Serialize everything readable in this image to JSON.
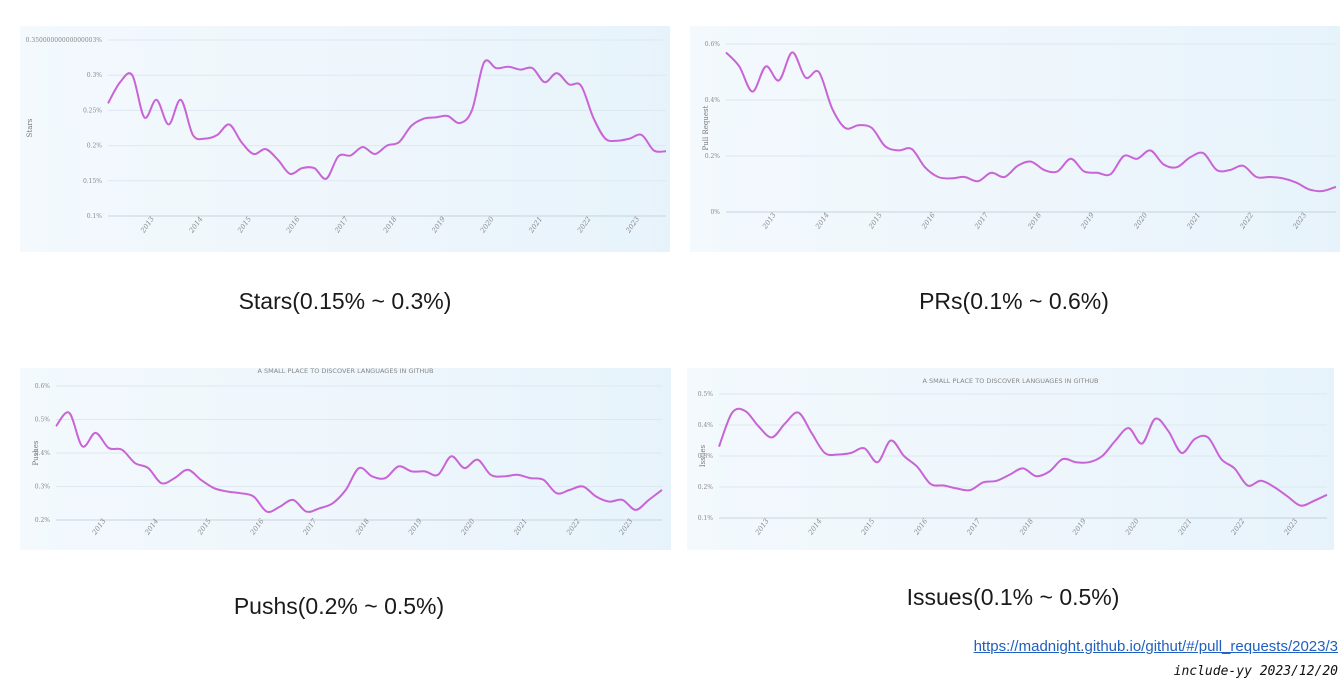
{
  "colors": {
    "line": "#c864d6",
    "grid": "#dde8f0",
    "axis": "#c4d3de"
  },
  "captions": [
    "Stars(0.15% ~ 0.3%)",
    "PRs(0.1% ~ 0.6%)",
    "Pushs(0.2% ~ 0.5%)",
    "Issues(0.1% ~ 0.5%)"
  ],
  "footer": {
    "link": "https://madnight.github.io/githut/#/pull_requests/2023/3",
    "stamp": "include-yy 2023/12/20"
  },
  "chart_data": [
    {
      "type": "line",
      "title": "",
      "ylabel": "Stars",
      "yticks": [
        {
          "v": 0.35,
          "label": "0.35000000000000003%"
        },
        {
          "v": 0.3,
          "label": "0.3%"
        },
        {
          "v": 0.25,
          "label": "0.25%"
        },
        {
          "v": 0.2,
          "label": "0.2%"
        },
        {
          "v": 0.15,
          "label": "0.15%"
        },
        {
          "v": 0.1,
          "label": "0.1%"
        }
      ],
      "ylim": [
        0.1,
        0.35
      ],
      "xlim": [
        2012.25,
        2023.75
      ],
      "xticks": [
        "2013",
        "2014",
        "2015",
        "2016",
        "2017",
        "2018",
        "2019",
        "2020",
        "2021",
        "2022",
        "2023"
      ],
      "x": [
        2012.25,
        2012.5,
        2012.75,
        2013.0,
        2013.25,
        2013.5,
        2013.75,
        2014.0,
        2014.25,
        2014.5,
        2014.75,
        2015.0,
        2015.25,
        2015.5,
        2015.75,
        2016.0,
        2016.25,
        2016.5,
        2016.75,
        2017.0,
        2017.25,
        2017.5,
        2017.75,
        2018.0,
        2018.25,
        2018.5,
        2018.75,
        2019.0,
        2019.25,
        2019.5,
        2019.75,
        2020.0,
        2020.25,
        2020.5,
        2020.75,
        2021.0,
        2021.25,
        2021.5,
        2021.75,
        2022.0,
        2022.25,
        2022.5,
        2022.75,
        2023.0,
        2023.25,
        2023.5,
        2023.75
      ],
      "values": [
        0.26,
        0.29,
        0.3,
        0.24,
        0.265,
        0.23,
        0.265,
        0.215,
        0.21,
        0.215,
        0.23,
        0.205,
        0.188,
        0.195,
        0.18,
        0.16,
        0.168,
        0.168,
        0.153,
        0.185,
        0.186,
        0.198,
        0.188,
        0.2,
        0.205,
        0.228,
        0.238,
        0.24,
        0.242,
        0.232,
        0.25,
        0.318,
        0.31,
        0.312,
        0.308,
        0.31,
        0.29,
        0.303,
        0.287,
        0.285,
        0.24,
        0.21,
        0.207,
        0.21,
        0.215,
        0.193,
        0.192
      ]
    },
    {
      "type": "line",
      "title": "",
      "ylabel": "Pull Request",
      "yticks": [
        {
          "v": 0.6,
          "label": "0.6%"
        },
        {
          "v": 0.4,
          "label": "0.4%"
        },
        {
          "v": 0.2,
          "label": "0.2%"
        },
        {
          "v": 0.0,
          "label": "0%"
        }
      ],
      "ylim": [
        0.0,
        0.6
      ],
      "xlim": [
        2012.25,
        2023.75
      ],
      "xticks": [
        "2013",
        "2014",
        "2015",
        "2016",
        "2017",
        "2018",
        "2019",
        "2020",
        "2021",
        "2022",
        "2023"
      ],
      "x": [
        2012.25,
        2012.5,
        2012.75,
        2013.0,
        2013.25,
        2013.5,
        2013.75,
        2014.0,
        2014.25,
        2014.5,
        2014.75,
        2015.0,
        2015.25,
        2015.5,
        2015.75,
        2016.0,
        2016.25,
        2016.5,
        2016.75,
        2017.0,
        2017.25,
        2017.5,
        2017.75,
        2018.0,
        2018.25,
        2018.5,
        2018.75,
        2019.0,
        2019.25,
        2019.5,
        2019.75,
        2020.0,
        2020.25,
        2020.5,
        2020.75,
        2021.0,
        2021.25,
        2021.5,
        2021.75,
        2022.0,
        2022.25,
        2022.5,
        2022.75,
        2023.0,
        2023.25,
        2023.5,
        2023.75
      ],
      "values": [
        0.57,
        0.52,
        0.43,
        0.52,
        0.47,
        0.57,
        0.48,
        0.5,
        0.37,
        0.3,
        0.31,
        0.3,
        0.235,
        0.22,
        0.225,
        0.16,
        0.125,
        0.12,
        0.125,
        0.11,
        0.14,
        0.125,
        0.165,
        0.18,
        0.15,
        0.145,
        0.19,
        0.145,
        0.14,
        0.135,
        0.2,
        0.19,
        0.22,
        0.17,
        0.16,
        0.195,
        0.21,
        0.15,
        0.15,
        0.165,
        0.125,
        0.125,
        0.12,
        0.105,
        0.08,
        0.075,
        0.09
      ]
    },
    {
      "type": "line",
      "title": "A SMALL PLACE TO DISCOVER LANGUAGES IN GITHUB",
      "ylabel": "Pushes",
      "yticks": [
        {
          "v": 0.6,
          "label": "0.6%"
        },
        {
          "v": 0.5,
          "label": "0.5%"
        },
        {
          "v": 0.4,
          "label": "0.4%"
        },
        {
          "v": 0.3,
          "label": "0.3%"
        },
        {
          "v": 0.2,
          "label": "0.2%"
        }
      ],
      "ylim": [
        0.2,
        0.6
      ],
      "xlim": [
        2012.25,
        2023.75
      ],
      "xticks": [
        "2013",
        "2014",
        "2015",
        "2016",
        "2017",
        "2018",
        "2019",
        "2020",
        "2021",
        "2022",
        "2023"
      ],
      "x": [
        2012.25,
        2012.5,
        2012.75,
        2013.0,
        2013.25,
        2013.5,
        2013.75,
        2014.0,
        2014.25,
        2014.5,
        2014.75,
        2015.0,
        2015.25,
        2015.5,
        2015.75,
        2016.0,
        2016.25,
        2016.5,
        2016.75,
        2017.0,
        2017.25,
        2017.5,
        2017.75,
        2018.0,
        2018.25,
        2018.5,
        2018.75,
        2019.0,
        2019.25,
        2019.5,
        2019.75,
        2020.0,
        2020.25,
        2020.5,
        2020.75,
        2021.0,
        2021.25,
        2021.5,
        2021.75,
        2022.0,
        2022.25,
        2022.5,
        2022.75,
        2023.0,
        2023.25,
        2023.5,
        2023.75
      ],
      "values": [
        0.48,
        0.52,
        0.42,
        0.46,
        0.415,
        0.41,
        0.37,
        0.355,
        0.31,
        0.325,
        0.35,
        0.32,
        0.295,
        0.285,
        0.28,
        0.27,
        0.225,
        0.24,
        0.26,
        0.225,
        0.235,
        0.25,
        0.29,
        0.355,
        0.33,
        0.325,
        0.36,
        0.345,
        0.345,
        0.335,
        0.39,
        0.355,
        0.38,
        0.335,
        0.33,
        0.335,
        0.325,
        0.32,
        0.28,
        0.29,
        0.3,
        0.27,
        0.255,
        0.26,
        0.23,
        0.26,
        0.29
      ]
    },
    {
      "type": "line",
      "title": "A SMALL PLACE TO DISCOVER LANGUAGES IN GITHUB",
      "ylabel": "Issues",
      "yticks": [
        {
          "v": 0.5,
          "label": "0.5%"
        },
        {
          "v": 0.4,
          "label": "0.4%"
        },
        {
          "v": 0.3,
          "label": "0.3%"
        },
        {
          "v": 0.2,
          "label": "0.2%"
        },
        {
          "v": 0.1,
          "label": "0.1%"
        }
      ],
      "ylim": [
        0.1,
        0.5
      ],
      "xlim": [
        2012.25,
        2023.75
      ],
      "xticks": [
        "2013",
        "2014",
        "2015",
        "2016",
        "2017",
        "2018",
        "2019",
        "2020",
        "2021",
        "2022",
        "2023"
      ],
      "x": [
        2012.25,
        2012.5,
        2012.75,
        2013.0,
        2013.25,
        2013.5,
        2013.75,
        2014.0,
        2014.25,
        2014.5,
        2014.75,
        2015.0,
        2015.25,
        2015.5,
        2015.75,
        2016.0,
        2016.25,
        2016.5,
        2016.75,
        2017.0,
        2017.25,
        2017.5,
        2017.75,
        2018.0,
        2018.25,
        2018.5,
        2018.75,
        2019.0,
        2019.25,
        2019.5,
        2019.75,
        2020.0,
        2020.25,
        2020.5,
        2020.75,
        2021.0,
        2021.25,
        2021.5,
        2021.75,
        2022.0,
        2022.25,
        2022.5,
        2022.75,
        2023.0,
        2023.25,
        2023.5,
        2023.75
      ],
      "values": [
        0.33,
        0.44,
        0.445,
        0.395,
        0.36,
        0.405,
        0.44,
        0.375,
        0.31,
        0.305,
        0.31,
        0.325,
        0.28,
        0.35,
        0.3,
        0.265,
        0.21,
        0.205,
        0.195,
        0.19,
        0.215,
        0.22,
        0.24,
        0.26,
        0.235,
        0.25,
        0.29,
        0.28,
        0.28,
        0.3,
        0.35,
        0.39,
        0.34,
        0.42,
        0.38,
        0.31,
        0.355,
        0.36,
        0.29,
        0.26,
        0.205,
        0.22,
        0.2,
        0.17,
        0.14,
        0.155,
        0.175
      ]
    }
  ]
}
